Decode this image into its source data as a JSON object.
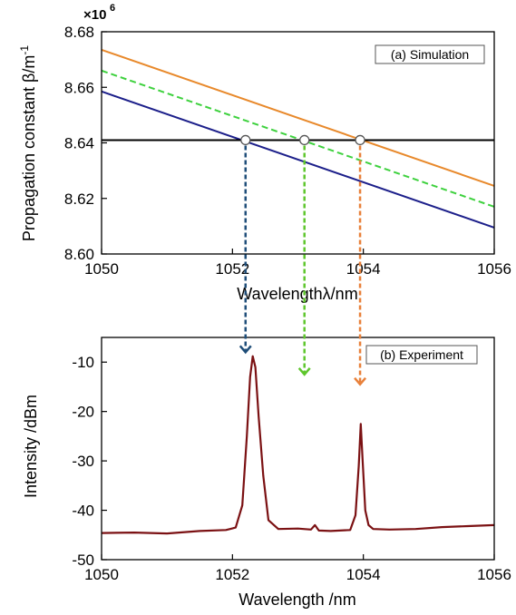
{
  "chart_data": [
    {
      "type": "line",
      "panel_label": "(a) Simulation",
      "xlabel": "Wavelengthλ/nm",
      "ylabel": "Propagation constant β/m",
      "ylabel_superscript": "-1",
      "y_multiplier": "×10",
      "y_multiplier_exp": "6",
      "xlim": [
        1050,
        1056
      ],
      "ylim": [
        8.6,
        8.68
      ],
      "xticks": [
        "1050",
        "1052",
        "1054",
        "1056"
      ],
      "yticks": [
        "8.60",
        "8.62",
        "8.64",
        "8.66",
        "8.68"
      ],
      "grid": false,
      "series": [
        {
          "color": "#e8892b",
          "dashed": false,
          "x": [
            1050,
            1056
          ],
          "y": [
            8.6735,
            8.6245
          ]
        },
        {
          "color": "#3ed13e",
          "dashed": true,
          "x": [
            1050,
            1056
          ],
          "y": [
            8.666,
            8.617
          ]
        },
        {
          "color": "#1c1f8a",
          "dashed": false,
          "x": [
            1050,
            1056
          ],
          "y": [
            8.6585,
            8.6095
          ]
        },
        {
          "color": "#000000",
          "dashed": false,
          "x": [
            1050,
            1056
          ],
          "y": [
            8.641,
            8.641
          ]
        }
      ],
      "intersections": [
        {
          "x": 1052.2,
          "y": 8.641,
          "arrow_color": "#1f4e79"
        },
        {
          "x": 1053.1,
          "y": 8.641,
          "arrow_color": "#5ec62c"
        },
        {
          "x": 1053.95,
          "y": 8.641,
          "arrow_color": "#e8803a"
        }
      ]
    },
    {
      "type": "line",
      "panel_label": "(b) Experiment",
      "xlabel": "Wavelength /nm",
      "ylabel": "Intensity /dBm",
      "xlim": [
        1050,
        1056
      ],
      "ylim": [
        -50,
        -5
      ],
      "xticks": [
        "1050",
        "1052",
        "1054",
        "1056"
      ],
      "yticks": [
        "-10",
        "-20",
        "-30",
        "-40",
        "-50"
      ],
      "grid": false,
      "series": [
        {
          "color": "#7b1113",
          "x": [
            1050.0,
            1050.5,
            1051.0,
            1051.5,
            1051.9,
            1052.05,
            1052.15,
            1052.22,
            1052.27,
            1052.31,
            1052.35,
            1052.4,
            1052.47,
            1052.55,
            1052.7,
            1053.0,
            1053.2,
            1053.26,
            1053.32,
            1053.5,
            1053.8,
            1053.88,
            1053.93,
            1053.96,
            1053.99,
            1054.03,
            1054.08,
            1054.15,
            1054.4,
            1054.8,
            1055.2,
            1055.6,
            1056.0
          ],
          "y": [
            -44.6,
            -44.5,
            -44.7,
            -44.2,
            -44.0,
            -43.5,
            -39.0,
            -25.0,
            -13.0,
            -8.8,
            -11.0,
            -21.0,
            -33.0,
            -42.0,
            -43.8,
            -43.7,
            -43.9,
            -43.0,
            -44.1,
            -44.2,
            -44.0,
            -41.0,
            -31.0,
            -22.5,
            -30.0,
            -40.0,
            -43.0,
            -43.8,
            -43.9,
            -43.8,
            -43.4,
            -43.2,
            -43.0
          ]
        }
      ],
      "arrows_end_y": [
        -8,
        -12.5,
        -14.5
      ]
    }
  ]
}
